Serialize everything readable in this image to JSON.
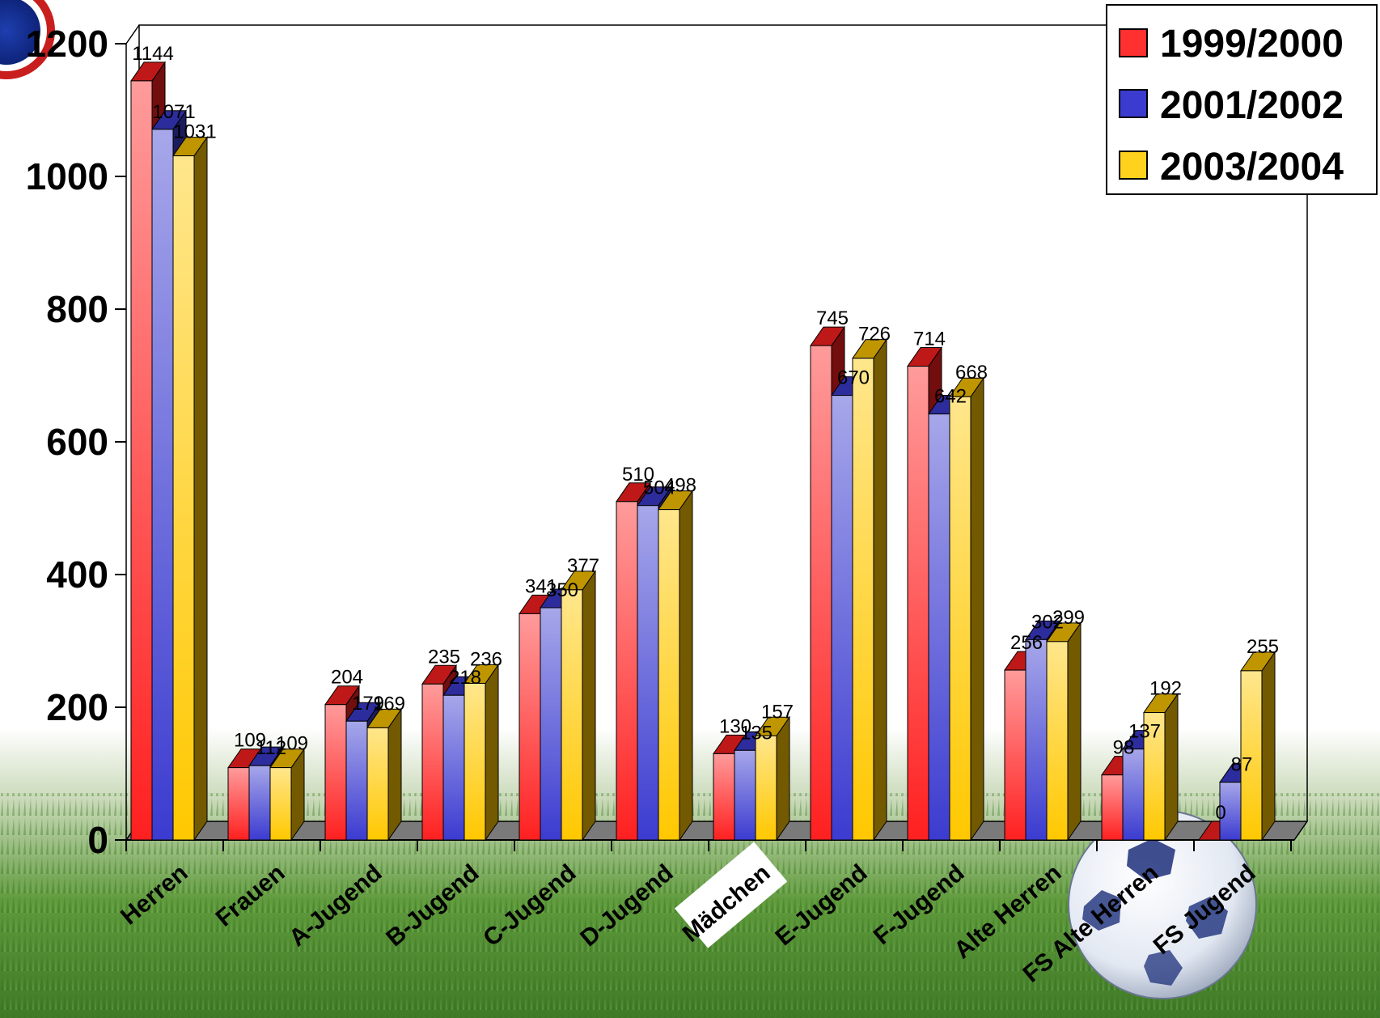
{
  "chart_data": {
    "type": "bar",
    "categories": [
      "Herren",
      "Frauen",
      "A-Jugend",
      "B-Jugend",
      "C-Jugend",
      "D-Jugend",
      "Mädchen",
      "E-Jugend",
      "F-Jugend",
      "Alte Herren",
      "FS Alte Herren",
      "FS Jugend"
    ],
    "series": [
      {
        "name": "1999/2000",
        "color": "#ff2020",
        "values": [
          1144,
          109,
          204,
          235,
          341,
          510,
          130,
          745,
          714,
          256,
          98,
          0
        ]
      },
      {
        "name": "2001/2002",
        "color": "#3b3bd0",
        "values": [
          1071,
          112,
          179,
          218,
          350,
          504,
          135,
          670,
          642,
          302,
          137,
          87
        ]
      },
      {
        "name": "2003/2004",
        "color": "#ffc800",
        "values": [
          1031,
          109,
          169,
          236,
          377,
          498,
          157,
          726,
          668,
          299,
          192,
          255
        ]
      }
    ],
    "ylim": [
      0,
      1200
    ],
    "yticks": [
      "0",
      "200",
      "400",
      "600",
      "800",
      "1000",
      "1200"
    ],
    "title": "",
    "xlabel": "",
    "ylabel": "",
    "grid": false,
    "legend_position": "top-right",
    "background": "green grass with football"
  }
}
